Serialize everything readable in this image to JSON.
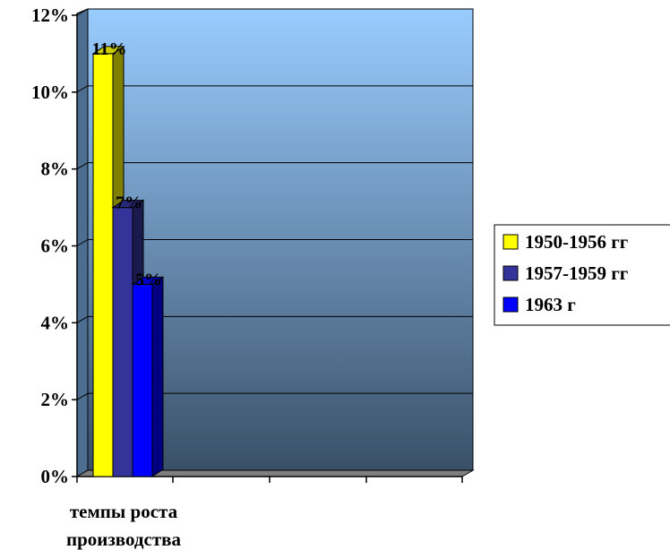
{
  "chart_data": {
    "type": "bar",
    "categories": [
      "темпы роста производства"
    ],
    "series": [
      {
        "name": "1950-1956 гг",
        "values": [
          11
        ],
        "label": "11%",
        "color": "#ffff00"
      },
      {
        "name": "1957-1959 гг",
        "values": [
          7
        ],
        "label": "7%",
        "color": "#333399"
      },
      {
        "name": "1963 г",
        "values": [
          5
        ],
        "label": "5%",
        "color": "#0000ff"
      }
    ],
    "title": "",
    "xlabel": "",
    "ylabel": "",
    "ylim": [
      0,
      12
    ],
    "yticks": [
      "0%",
      "2%",
      "4%",
      "6%",
      "8%",
      "10%",
      "12%"
    ],
    "value_format": "percent",
    "grid": true,
    "legend_position": "right",
    "background": {
      "top_color": "#99ccff",
      "bottom_color": "#3a5068"
    }
  }
}
